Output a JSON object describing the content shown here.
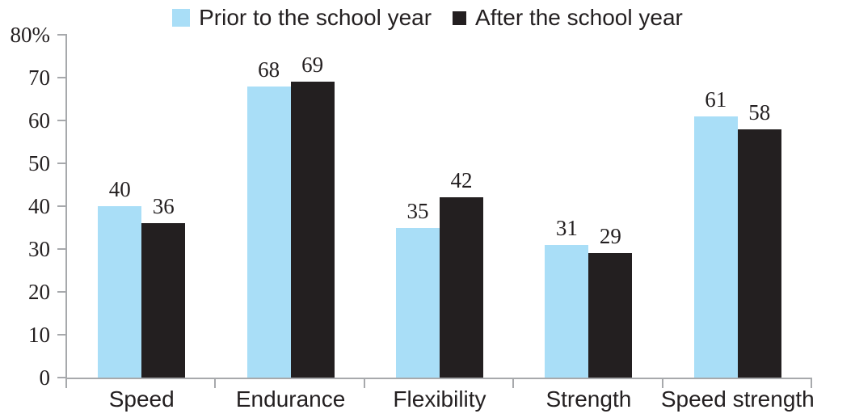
{
  "chart_data": {
    "type": "bar",
    "title": "",
    "xlabel": "",
    "ylabel": "",
    "categories": [
      "Speed",
      "Endurance",
      "Flexibility",
      "Strength",
      "Speed strength"
    ],
    "series": [
      {
        "name": "Prior to the school year",
        "color": "#A9DEF7",
        "values": [
          40,
          68,
          35,
          31,
          61
        ]
      },
      {
        "name": "After the school year",
        "color": "#231F20",
        "values": [
          36,
          69,
          42,
          29,
          58
        ]
      }
    ],
    "ylim": [
      0,
      80
    ],
    "ytick_step": 10,
    "ytick_labels": [
      "0",
      "10",
      "20",
      "30",
      "40",
      "50",
      "60",
      "70",
      "80%"
    ],
    "value_labels_shown": true,
    "grid": false,
    "legend_position": "top-center",
    "axis_color": "#A7A9AC",
    "text_color": "#231F20"
  }
}
